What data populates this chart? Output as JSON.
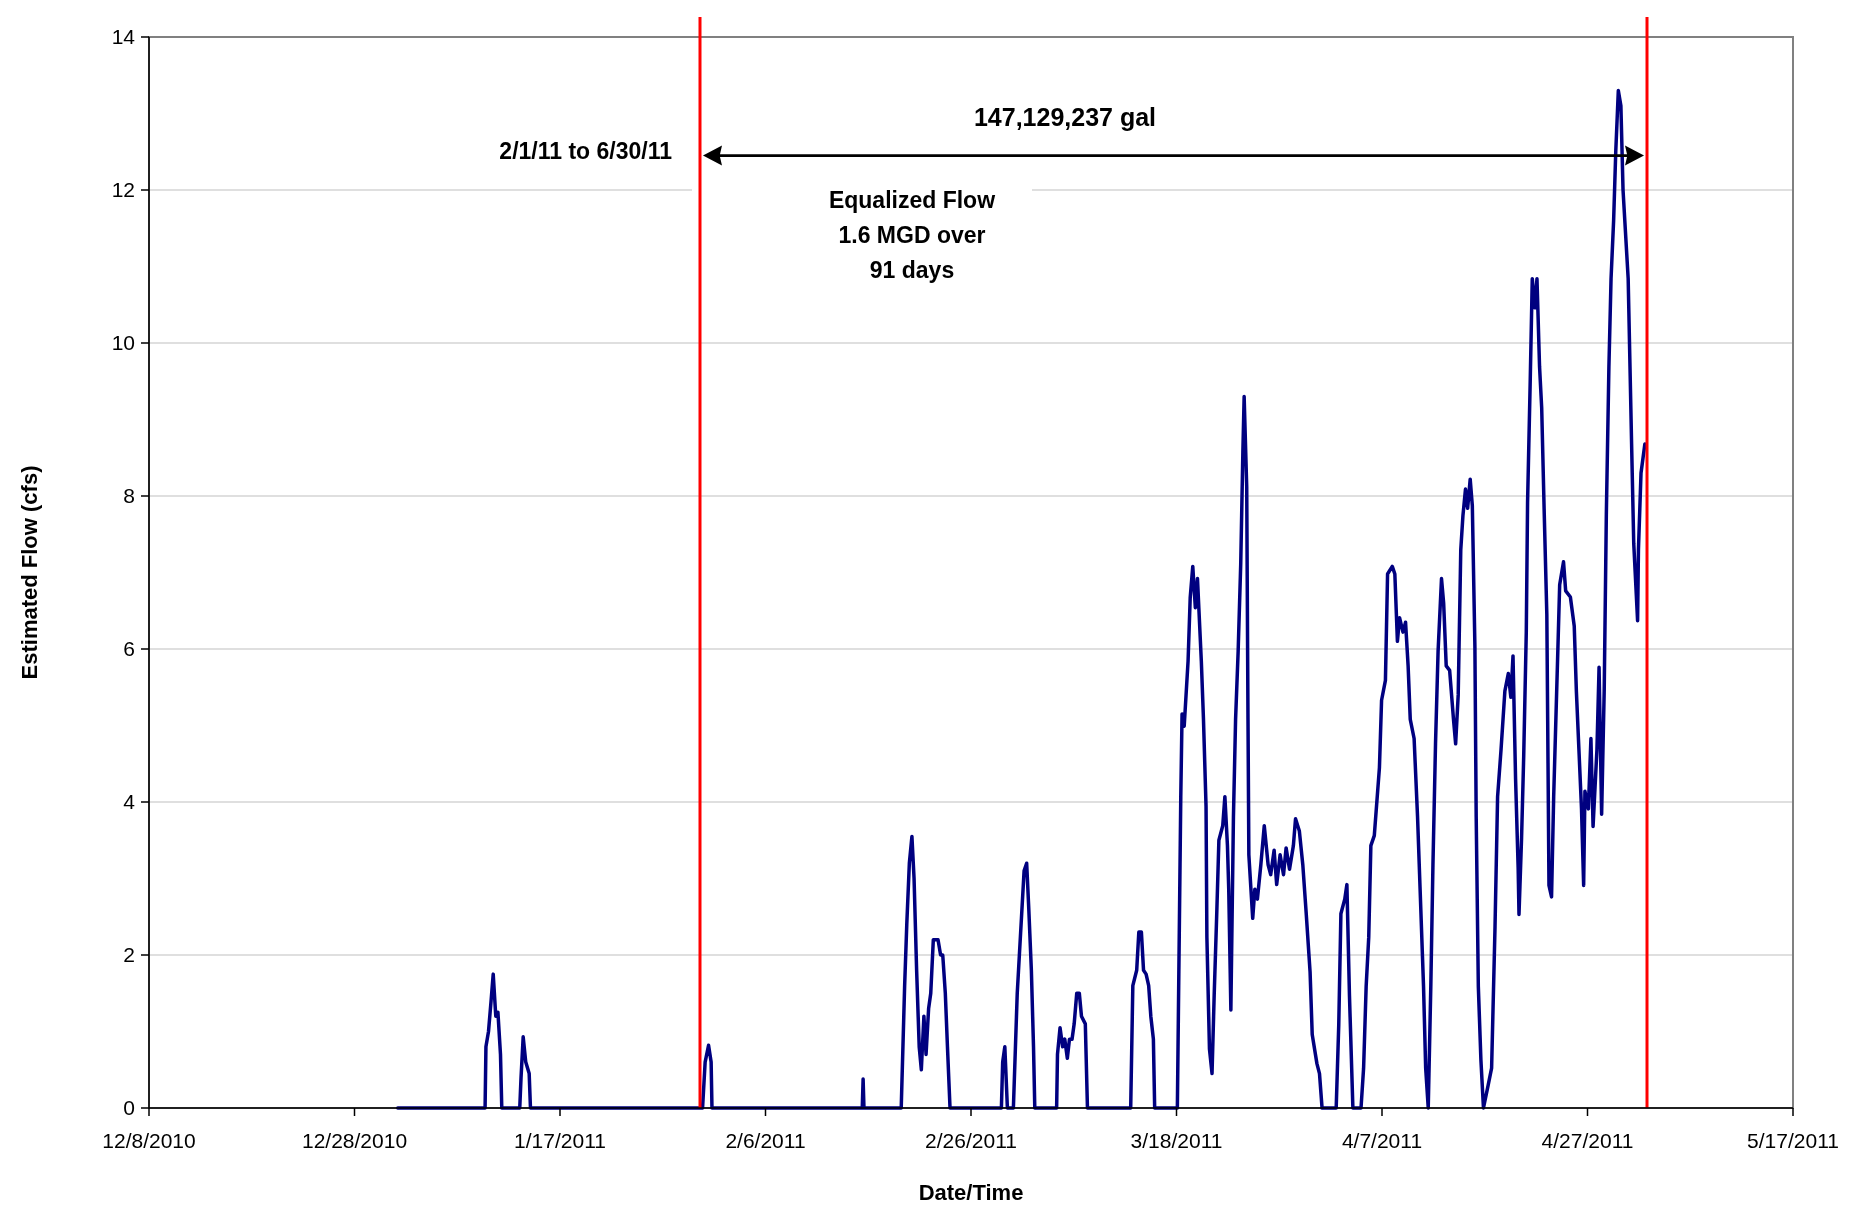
{
  "chart_data": {
    "type": "line",
    "xlabel": "Date/Time",
    "ylabel": "Estimated Flow (cfs)",
    "xlim": [
      "2010-12-08",
      "2011-05-17"
    ],
    "xticks": [
      {
        "value": "2010-12-08",
        "label": "12/8/2010"
      },
      {
        "value": "2010-12-28",
        "label": "12/28/2010"
      },
      {
        "value": "2011-01-17",
        "label": "1/17/2011"
      },
      {
        "value": "2011-02-06",
        "label": "2/6/2011"
      },
      {
        "value": "2011-02-26",
        "label": "2/26/2011"
      },
      {
        "value": "2011-03-18",
        "label": "3/18/2011"
      },
      {
        "value": "2011-04-07",
        "label": "4/7/2011"
      },
      {
        "value": "2011-04-27",
        "label": "4/27/2011"
      },
      {
        "value": "2011-05-17",
        "label": "5/17/2011"
      }
    ],
    "ylim": [
      0,
      14
    ],
    "yticks": [
      0,
      2,
      4,
      6,
      8,
      10,
      12,
      14
    ],
    "grid": "y",
    "ref_lines": [
      {
        "axis": "x",
        "value": "2011-01-30T15:00",
        "color": "#ff0000"
      },
      {
        "axis": "x",
        "value": "2011-05-02T19:00",
        "color": "#ff0000"
      }
    ],
    "annotations": [
      "147,129,237 gal",
      "2/1/11 to 6/30/11",
      "Equalized Flow\n1.6 MGD over\n91 days"
    ],
    "series": [
      {
        "color": "#000080",
        "x": [
          "2011-01-01T05:00",
          "2011-01-09T17:00",
          "2011-01-09T19:00",
          "2011-01-10T01:00",
          "2011-01-10T07:00",
          "2011-01-10T12:00",
          "2011-01-10T18:00",
          "2011-01-10T23:00",
          "2011-01-11T05:00",
          "2011-01-11T08:00",
          "2011-01-13T02:00",
          "2011-01-13T05:00",
          "2011-01-13T10:00",
          "2011-01-13T16:00",
          "2011-01-14T00:00",
          "2011-01-14T03:00",
          "2011-01-30T21:00",
          "2011-01-31T03:00",
          "2011-01-31T11:00",
          "2011-01-31T17:00",
          "2011-01-31T19:00",
          "2011-02-15T10:00",
          "2011-02-15T12:00",
          "2011-02-15T14:00",
          "2011-02-19T05:00",
          "2011-02-19T13:00",
          "2011-02-19T18:00",
          "2011-02-20T00:00",
          "2011-02-20T06:00",
          "2011-02-20T11:00",
          "2011-02-20T17:00",
          "2011-02-20T23:00",
          "2011-02-21T04:00",
          "2011-02-21T10:00",
          "2011-02-21T15:00",
          "2011-02-21T21:00",
          "2011-02-22T02:00",
          "2011-02-22T08:00",
          "2011-02-22T19:00",
          "2011-02-23T01:00",
          "2011-02-23T06:00",
          "2011-02-23T12:00",
          "2011-02-23T17:00",
          "2011-02-23T23:00",
          "2011-02-28T23:00",
          "2011-03-01T02:00",
          "2011-03-01T07:00",
          "2011-03-01T13:00",
          "2011-03-02T03:00",
          "2011-03-02T12:00",
          "2011-03-02T17:00",
          "2011-03-02T23:00",
          "2011-03-03T04:00",
          "2011-03-03T10:00",
          "2011-03-03T15:00",
          "2011-03-03T21:00",
          "2011-03-04T02:00",
          "2011-03-04T05:00",
          "2011-03-06T08:00",
          "2011-03-06T10:00",
          "2011-03-06T16:00",
          "2011-03-06T22:00",
          "2011-03-07T03:00",
          "2011-03-07T09:00",
          "2011-03-07T14:00",
          "2011-03-07T20:00",
          "2011-03-08T01:00",
          "2011-03-08T07:00",
          "2011-03-08T13:00",
          "2011-03-08T18:00",
          "2011-03-09T03:00",
          "2011-03-09T08:00",
          "2011-03-13T13:00",
          "2011-03-13T18:00",
          "2011-03-14T03:00",
          "2011-03-14T08:00",
          "2011-03-14T14:00",
          "2011-03-14T19:00",
          "2011-03-15T01:00",
          "2011-03-15T07:00",
          "2011-03-15T12:00",
          "2011-03-15T18:00",
          "2011-03-15T21:00",
          "2011-03-18T02:00",
          "2011-03-18T10:00",
          "2011-03-18T13:00",
          "2011-03-18T18:00",
          "2011-03-19T03:00",
          "2011-03-19T08:00",
          "2011-03-19T14:00",
          "2011-03-19T20:00",
          "2011-03-20T01:00",
          "2011-03-20T10:00",
          "2011-03-20T15:00",
          "2011-03-20T21:00",
          "2011-03-20T23:00",
          "2011-03-21T05:00",
          "2011-03-21T11:00",
          "2011-03-21T16:00",
          "2011-03-21T22:00",
          "2011-03-22T03:00",
          "2011-03-22T12:00",
          "2011-03-22T17:00",
          "2011-03-22T23:00",
          "2011-03-23T02:00",
          "2011-03-23T07:00",
          "2011-03-23T13:00",
          "2011-03-23T18:00",
          "2011-03-24T00:00",
          "2011-03-24T06:00",
          "2011-03-24T11:00",
          "2011-03-24T14:00",
          "2011-03-24T20:00",
          "2011-03-24T23:00",
          "2011-03-25T01:00",
          "2011-03-25T10:00",
          "2011-03-25T15:00",
          "2011-03-25T21:00",
          "2011-03-26T05:00",
          "2011-03-26T13:00",
          "2011-03-26T22:00",
          "2011-03-27T04:00",
          "2011-03-27T12:00",
          "2011-03-27T18:00",
          "2011-03-28T02:00",
          "2011-03-28T10:00",
          "2011-03-28T16:00",
          "2011-03-29T00:00",
          "2011-03-29T09:00",
          "2011-03-29T14:00",
          "2011-03-29T23:00",
          "2011-03-30T07:00",
          "2011-03-30T15:00",
          "2011-03-31T00:00",
          "2011-03-31T05:00",
          "2011-03-31T16:00",
          "2011-03-31T22:00",
          "2011-04-01T04:00",
          "2011-04-02T13:00",
          "2011-04-02T19:00",
          "2011-04-03T00:00",
          "2011-04-03T09:00",
          "2011-04-03T14:00",
          "2011-04-03T20:00",
          "2011-04-04T04:00",
          "2011-04-04T23:00",
          "2011-04-05T05:00",
          "2011-04-05T11:00",
          "2011-04-05T17:00",
          "2011-04-05T22:00",
          "2011-04-06T06:00",
          "2011-04-06T18:00",
          "2011-04-06T23:00",
          "2011-04-07T08:00",
          "2011-04-07T13:00",
          "2011-04-08T00:00",
          "2011-04-08T06:00",
          "2011-04-08T12:00",
          "2011-04-08T17:00",
          "2011-04-09T01:00",
          "2011-04-09T07:00",
          "2011-04-09T13:00",
          "2011-04-09T18:00",
          "2011-04-10T03:00",
          "2011-04-10T11:00",
          "2011-04-10T17:00",
          "2011-04-11T01:00",
          "2011-04-11T06:00",
          "2011-04-11T12:00",
          "2011-04-11T18:00",
          "2011-04-11T23:00",
          "2011-04-12T05:00",
          "2011-04-12T11:00",
          "2011-04-12T19:00",
          "2011-04-13T00:00",
          "2011-04-13T06:00",
          "2011-04-13T14:00",
          "2011-04-13T23:00",
          "2011-04-14T04:00",
          "2011-04-14T10:00",
          "2011-04-14T16:00",
          "2011-04-14T21:00",
          "2011-04-15T03:00",
          "2011-04-15T08:00",
          "2011-04-15T14:00",
          "2011-04-15T19:00",
          "2011-04-16T01:00",
          "2011-04-16T04:00",
          "2011-04-16T09:00",
          "2011-04-16T15:00",
          "2011-04-16T21:00",
          "2011-04-17T08:00",
          "2011-04-17T16:00",
          "2011-04-18T00:00",
          "2011-04-18T06:00",
          "2011-04-18T14:00",
          "2011-04-18T23:00",
          "2011-04-19T07:00",
          "2011-04-19T13:00",
          "2011-04-19T18:00",
          "2011-04-20T00:00",
          "2011-04-20T06:00",
          "2011-04-20T08:00",
          "2011-04-20T14:00",
          "2011-04-20T19:00",
          "2011-04-21T01:00",
          "2011-04-21T04:00",
          "2011-04-21T10:00",
          "2011-04-21T15:00",
          "2011-04-21T21:00",
          "2011-04-22T02:00",
          "2011-04-22T08:00",
          "2011-04-22T13:00",
          "2011-04-22T19:00",
          "2011-04-23T01:00",
          "2011-04-23T03:00",
          "2011-04-23T06:00",
          "2011-04-23T12:00",
          "2011-04-23T17:00",
          "2011-04-24T02:00",
          "2011-04-24T07:00",
          "2011-04-24T16:00",
          "2011-04-24T21:00",
          "2011-04-25T08:00",
          "2011-04-25T17:00",
          "2011-04-25T22:00",
          "2011-04-26T04:00",
          "2011-04-26T10:00",
          "2011-04-26T15:00",
          "2011-04-26T18:00",
          "2011-04-27T02:00",
          "2011-04-27T08:00",
          "2011-04-27T13:00",
          "2011-04-27T22:00",
          "2011-04-28T03:00",
          "2011-04-28T09:00",
          "2011-04-28T15:00",
          "2011-04-28T20:00",
          "2011-04-29T02:00",
          "2011-04-29T07:00",
          "2011-04-29T13:00",
          "2011-04-29T18:00",
          "2011-04-30T00:00",
          "2011-04-30T06:00",
          "2011-04-30T11:00",
          "2011-04-30T23:00",
          "2011-05-01T07:00",
          "2011-05-01T12:00",
          "2011-05-01T21:00",
          "2011-05-01T23:00",
          "2011-05-02T05:00",
          "2011-05-02T14:00"
        ],
        "values": [
          0,
          0,
          0.8,
          1.0,
          1.4,
          1.75,
          1.2,
          1.25,
          0.7,
          0,
          0,
          0.4,
          0.93,
          0.6,
          0.45,
          0,
          0,
          0.6,
          0.82,
          0.6,
          0,
          0,
          0.38,
          0,
          0,
          1.6,
          2.4,
          3.2,
          3.55,
          3.0,
          1.8,
          0.8,
          0.5,
          1.2,
          0.7,
          1.3,
          1.5,
          2.2,
          2.2,
          2.0,
          2.0,
          1.5,
          0.8,
          0,
          0,
          0.6,
          0.8,
          0,
          0,
          1.5,
          2.0,
          2.6,
          3.1,
          3.2,
          2.6,
          1.8,
          0.8,
          0,
          0,
          0.7,
          1.05,
          0.8,
          0.9,
          0.65,
          0.9,
          0.9,
          1.1,
          1.5,
          1.5,
          1.2,
          1.1,
          0,
          0,
          1.6,
          1.8,
          2.3,
          2.3,
          1.8,
          1.75,
          1.6,
          1.2,
          0.9,
          0,
          0,
          4.07,
          5.15,
          4.99,
          5.84,
          6.67,
          7.08,
          6.54,
          6.92,
          5.84,
          5.08,
          3.94,
          2.23,
          0.77,
          0.45,
          1.47,
          2.54,
          3.5,
          3.69,
          4.07,
          3.43,
          2.86,
          1.28,
          3.81,
          5.08,
          5.97,
          7.11,
          8.57,
          9.3,
          8.12,
          5.08,
          3.31,
          2.48,
          2.86,
          2.73,
          3.18,
          3.69,
          3.18,
          3.05,
          3.37,
          2.92,
          3.31,
          3.05,
          3.4,
          3.12,
          3.43,
          3.78,
          3.62,
          3.18,
          2.54,
          1.78,
          0.96,
          0.58,
          0.45,
          0,
          0,
          1.09,
          2.54,
          2.73,
          2.92,
          1.47,
          0,
          0,
          0.52,
          1.59,
          2.23,
          3.43,
          3.56,
          4.45,
          5.33,
          5.59,
          6.98,
          7.08,
          6.98,
          6.1,
          6.41,
          6.22,
          6.35,
          5.78,
          5.08,
          4.83,
          3.81,
          2.86,
          1.59,
          0.52,
          0,
          1.59,
          3.18,
          4.76,
          5.97,
          6.92,
          6.6,
          5.78,
          5.72,
          5.08,
          4.76,
          5.4,
          7.3,
          7.74,
          8.09,
          7.84,
          8.22,
          7.87,
          6.03,
          3.81,
          1.59,
          0.63,
          0,
          0.3,
          0.52,
          2.37,
          4.07,
          4.68,
          5.45,
          5.68,
          5.37,
          5.91,
          4.3,
          3.14,
          2.53,
          3.53,
          4.6,
          6.22,
          7.91,
          9.45,
          10.84,
          10.46,
          10.84,
          9.69,
          9.15,
          7.76,
          6.45,
          5.07,
          2.91,
          2.76,
          4.07,
          5.84,
          6.84,
          7.14,
          6.76,
          6.68,
          6.3,
          5.45,
          4.68,
          3.91,
          2.91,
          4.14,
          3.91,
          4.83,
          3.68,
          4.68,
          5.76,
          3.84,
          5.45,
          7.76,
          9.69,
          10.84,
          11.6,
          12.5,
          13.3,
          13.1,
          12.0,
          10.84,
          8.68,
          7.38,
          6.37,
          7.3,
          8.3,
          8.68
        ]
      }
    ]
  }
}
